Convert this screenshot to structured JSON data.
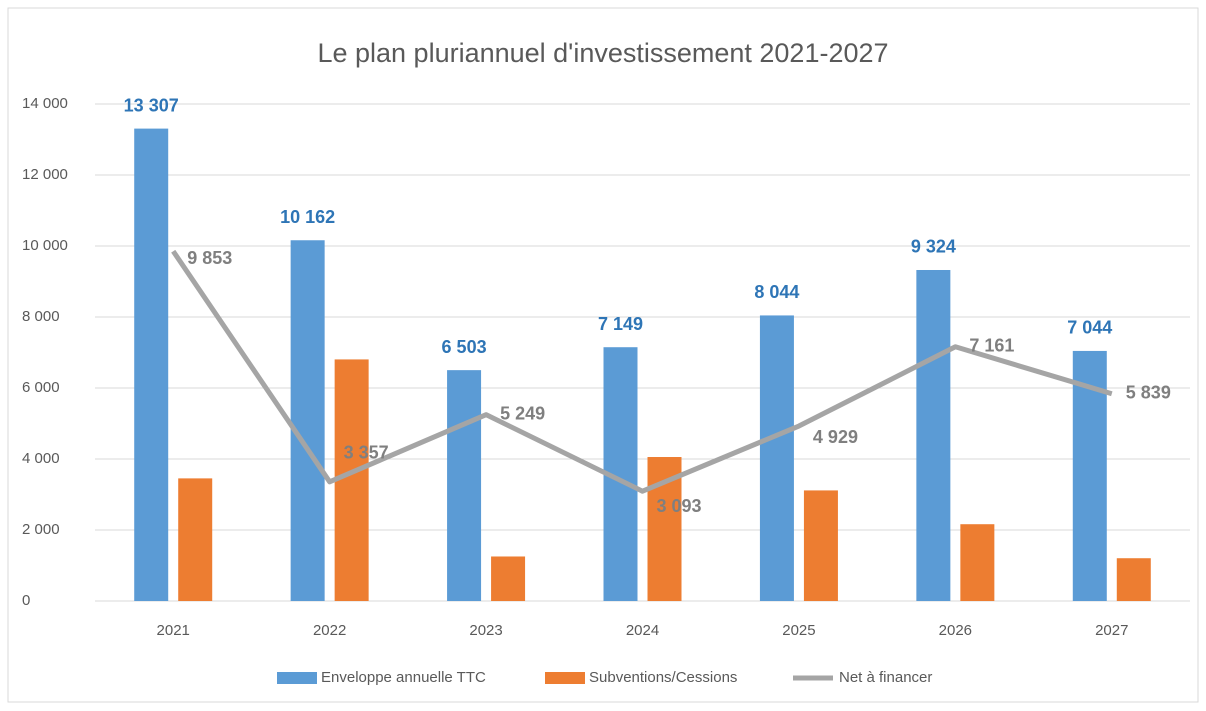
{
  "chart_data": {
    "type": "bar",
    "title": "Le plan pluriannuel d'investissement 2021-2027",
    "categories": [
      "2021",
      "2022",
      "2023",
      "2024",
      "2025",
      "2026",
      "2027"
    ],
    "series": [
      {
        "name": "Enveloppe annuelle TTC",
        "color": "#5b9bd5",
        "values": [
          13307,
          10162,
          6503,
          7149,
          8044,
          9324,
          7044
        ],
        "value_labels": [
          "13 307",
          "10 162",
          "6 503",
          "7 149",
          "8 044",
          "9 324",
          "7 044"
        ],
        "label_color": "#2e75b6"
      },
      {
        "name": "Subventions/Cessions",
        "color": "#ed7d31",
        "values": [
          3454,
          6805,
          1254,
          4056,
          3115,
          2163,
          1205
        ]
      },
      {
        "name": "Net à financer",
        "type": "line",
        "color": "#a5a5a5",
        "values": [
          9853,
          3357,
          5249,
          3093,
          4929,
          7161,
          5839
        ],
        "value_labels": [
          "9 853",
          "3 357",
          "5 249",
          "3 093",
          "4 929",
          "7 161",
          "5 839"
        ],
        "label_color": "#7f7f7f"
      }
    ],
    "ylim": [
      0,
      14000
    ],
    "yticks": [
      0,
      {
        "value": 2000,
        "label": "2 000"
      },
      {
        "value": 4000,
        "label": "4 000"
      },
      {
        "value": 6000,
        "label": "6 000"
      },
      {
        "value": 8000,
        "label": "8 000"
      },
      {
        "value": 10000,
        "label": "10 000"
      },
      {
        "value": 12000,
        "label": "12 000"
      },
      {
        "value": 14000,
        "label": "14 000"
      }
    ],
    "grid": true,
    "legend": "bottom"
  }
}
